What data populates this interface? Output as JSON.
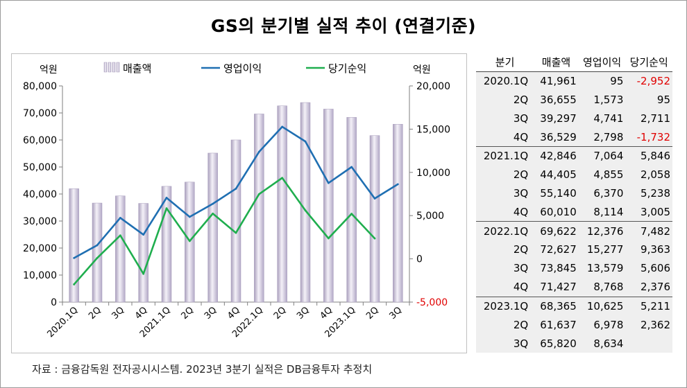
{
  "title": "GS의 분기별 실적 추이 (연결기준)",
  "source": "자료 : 금융감독원 전자공시시스템. 2023년 3분기 실적은 DB금융투자 추정치",
  "colors": {
    "revenue": "#c9c0d6",
    "operating": "#1f6fb2",
    "net": "#1fae4e",
    "negative": "#e00000"
  },
  "chart_data": {
    "type": "bar+line",
    "left_axis": {
      "label": "억원",
      "ylim": [
        0,
        80000
      ],
      "ticks": [
        "0",
        "10,000",
        "20,000",
        "30,000",
        "40,000",
        "50,000",
        "60,000",
        "70,000",
        "80,000"
      ]
    },
    "right_axis": {
      "label": "억원",
      "ylim": [
        -5000,
        20000
      ],
      "ticks": [
        "-5,000",
        "0",
        "5,000",
        "10,000",
        "15,000",
        "20,000"
      ]
    },
    "categories": [
      "2020.1Q",
      "2Q",
      "3Q",
      "4Q",
      "2021.1Q",
      "2Q",
      "3Q",
      "4Q",
      "2022.1Q",
      "2Q",
      "3Q",
      "4Q",
      "2023.1Q",
      "2Q",
      "3Q"
    ],
    "series": [
      {
        "name": "매출액",
        "type": "bar",
        "axis": "left",
        "values": [
          41961,
          36655,
          39297,
          36529,
          42846,
          44405,
          55140,
          60010,
          69622,
          72627,
          73845,
          71427,
          68365,
          61637,
          65820
        ]
      },
      {
        "name": "영업이익",
        "type": "line",
        "axis": "right",
        "values": [
          95,
          1573,
          4741,
          2798,
          7064,
          4855,
          6370,
          8114,
          12376,
          15277,
          13579,
          8768,
          10625,
          6978,
          8634
        ]
      },
      {
        "name": "당기순익",
        "type": "line",
        "axis": "right",
        "values": [
          -2952,
          95,
          2711,
          -1732,
          5846,
          2058,
          5238,
          3005,
          7482,
          9363,
          5606,
          2376,
          5211,
          2362,
          null
        ]
      }
    ]
  },
  "table": {
    "headers": [
      "분기",
      "매출액",
      "영업이익",
      "당기순익"
    ],
    "rows": [
      [
        "2020.1Q",
        "41,961",
        "95",
        "-2,952"
      ],
      [
        "2Q",
        "36,655",
        "1,573",
        "95"
      ],
      [
        "3Q",
        "39,297",
        "4,741",
        "2,711"
      ],
      [
        "4Q",
        "36,529",
        "2,798",
        "-1,732"
      ],
      [
        "2021.1Q",
        "42,846",
        "7,064",
        "5,846"
      ],
      [
        "2Q",
        "44,405",
        "4,855",
        "2,058"
      ],
      [
        "3Q",
        "55,140",
        "6,370",
        "5,238"
      ],
      [
        "4Q",
        "60,010",
        "8,114",
        "3,005"
      ],
      [
        "2022.1Q",
        "69,622",
        "12,376",
        "7,482"
      ],
      [
        "2Q",
        "72,627",
        "15,277",
        "9,363"
      ],
      [
        "3Q",
        "73,845",
        "13,579",
        "5,606"
      ],
      [
        "4Q",
        "71,427",
        "8,768",
        "2,376"
      ],
      [
        "2023.1Q",
        "68,365",
        "10,625",
        "5,211"
      ],
      [
        "2Q",
        "61,637",
        "6,978",
        "2,362"
      ],
      [
        "3Q",
        "65,820",
        "8,634",
        ""
      ]
    ]
  }
}
